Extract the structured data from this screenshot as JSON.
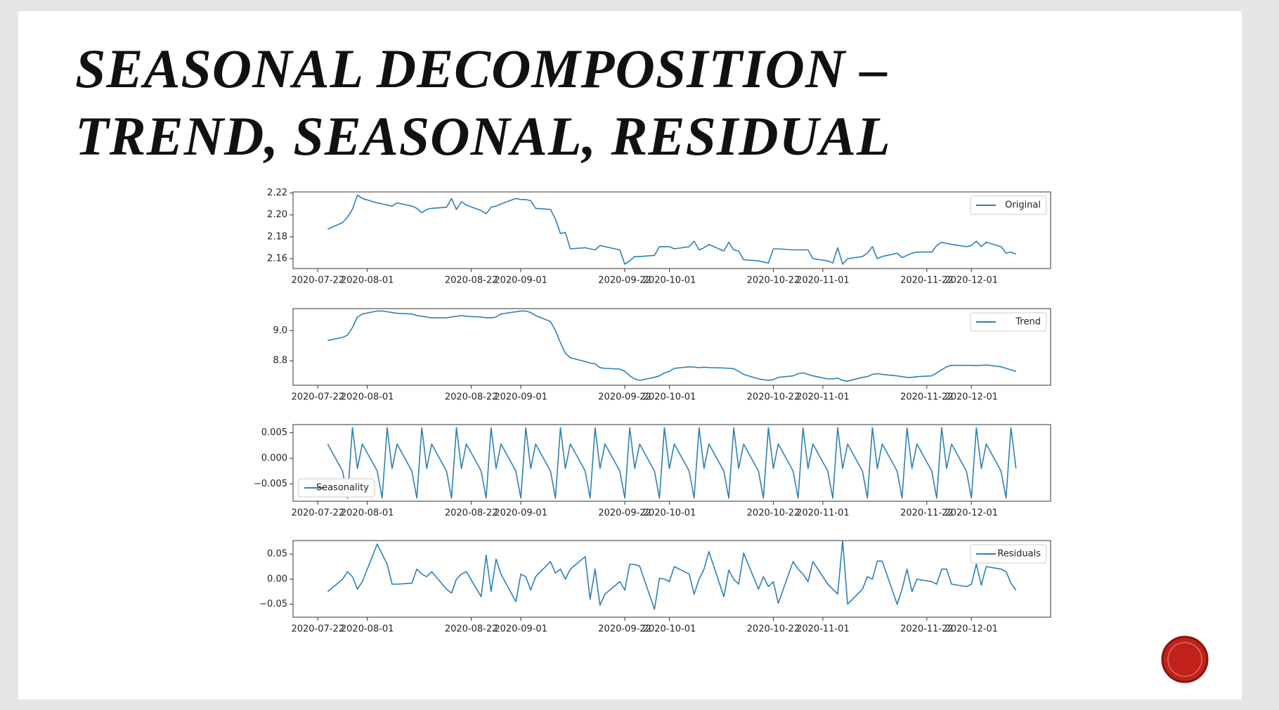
{
  "slide": {
    "title": [
      "SEASONAL DECOMPOSITION –",
      "TREND, SEASONAL, RESIDUAL"
    ]
  },
  "chart_data": {
    "type": "line",
    "x": [
      "2020-07-24",
      "2020-07-27",
      "2020-07-28",
      "2020-07-29",
      "2020-07-30",
      "2020-07-31",
      "2020-08-03",
      "2020-08-04",
      "2020-08-05",
      "2020-08-06",
      "2020-08-07",
      "2020-08-10",
      "2020-08-11",
      "2020-08-12",
      "2020-08-13",
      "2020-08-14",
      "2020-08-17",
      "2020-08-18",
      "2020-08-19",
      "2020-08-20",
      "2020-08-21",
      "2020-08-24",
      "2020-08-25",
      "2020-08-26",
      "2020-08-27",
      "2020-08-28",
      "2020-08-31",
      "2020-09-01",
      "2020-09-02",
      "2020-09-03",
      "2020-09-04",
      "2020-09-07",
      "2020-09-08",
      "2020-09-09",
      "2020-09-10",
      "2020-09-11",
      "2020-09-14",
      "2020-09-15",
      "2020-09-16",
      "2020-09-17",
      "2020-09-18",
      "2020-09-21",
      "2020-09-22",
      "2020-09-23",
      "2020-09-24",
      "2020-09-25",
      "2020-09-28",
      "2020-09-29",
      "2020-09-30",
      "2020-10-01",
      "2020-10-02",
      "2020-10-05",
      "2020-10-06",
      "2020-10-07",
      "2020-10-08",
      "2020-10-09",
      "2020-10-12",
      "2020-10-13",
      "2020-10-14",
      "2020-10-15",
      "2020-10-16",
      "2020-10-19",
      "2020-10-20",
      "2020-10-21",
      "2020-10-22",
      "2020-10-23",
      "2020-10-26",
      "2020-10-27",
      "2020-10-28",
      "2020-10-29",
      "2020-10-30",
      "2020-11-02",
      "2020-11-03",
      "2020-11-04",
      "2020-11-05",
      "2020-11-06",
      "2020-11-09",
      "2020-11-10",
      "2020-11-11",
      "2020-11-12",
      "2020-11-13",
      "2020-11-16",
      "2020-11-17",
      "2020-11-18",
      "2020-11-19",
      "2020-11-20",
      "2020-11-23",
      "2020-11-24",
      "2020-11-25",
      "2020-11-26",
      "2020-11-27",
      "2020-11-30",
      "2020-12-01",
      "2020-12-02",
      "2020-12-03",
      "2020-12-04",
      "2020-12-07",
      "2020-12-08",
      "2020-12-09",
      "2020-12-10"
    ],
    "xlim": [
      "2020-07-17",
      "2020-12-17"
    ],
    "xticks": [
      "2020-07-22",
      "2020-08-01",
      "2020-08-22",
      "2020-09-01",
      "2020-09-22",
      "2020-10-01",
      "2020-10-22",
      "2020-11-01",
      "2020-11-22",
      "2020-12-01"
    ],
    "series": [
      {
        "name": "Original",
        "color": "#2f7fb5",
        "legend": "upper right",
        "ylim": [
          2.151,
          2.221
        ],
        "yticks": [
          2.16,
          2.18,
          {
            "value": 2.2,
            "label": "2.20"
          },
          2.22
        ],
        "values": [
          2.187,
          2.193,
          2.198,
          2.205,
          2.218,
          2.215,
          2.211,
          2.21,
          2.209,
          2.208,
          2.211,
          2.208,
          2.206,
          2.202,
          2.205,
          2.206,
          2.207,
          2.215,
          2.205,
          2.212,
          2.209,
          2.204,
          2.201,
          2.207,
          2.208,
          2.21,
          2.215,
          2.214,
          2.214,
          2.213,
          2.206,
          2.205,
          2.196,
          2.183,
          2.184,
          2.169,
          2.17,
          2.169,
          2.168,
          2.172,
          2.171,
          2.168,
          2.155,
          2.158,
          2.162,
          2.162,
          2.163,
          2.171,
          2.171,
          2.171,
          2.169,
          2.171,
          2.176,
          2.168,
          2.17,
          2.173,
          2.167,
          2.175,
          2.168,
          2.167,
          2.159,
          2.158,
          2.157,
          2.156,
          2.169,
          2.169,
          2.168,
          2.168,
          2.168,
          2.168,
          2.16,
          2.158,
          2.156,
          2.17,
          2.155,
          2.16,
          2.162,
          2.165,
          2.171,
          2.16,
          2.162,
          2.165,
          2.161,
          2.163,
          2.165,
          2.166,
          2.166,
          2.172,
          2.175,
          2.174,
          2.173,
          2.171,
          2.172,
          2.176,
          2.171,
          2.175,
          2.171,
          2.165,
          2.166,
          2.164
        ]
      },
      {
        "name": "Trend",
        "color": "#2f7fb5",
        "legend": "upper right",
        "ylim": [
          8.638,
          9.146
        ],
        "yticks": [
          8.8,
          {
            "value": 9,
            "label": "9.0"
          }
        ],
        "values": [
          8.935,
          8.955,
          8.97,
          9.02,
          9.09,
          9.11,
          9.13,
          9.13,
          9.125,
          9.12,
          9.115,
          9.11,
          9.1,
          9.095,
          9.09,
          9.085,
          9.085,
          9.09,
          9.095,
          9.1,
          9.095,
          9.09,
          9.085,
          9.085,
          9.09,
          9.11,
          9.125,
          9.13,
          9.13,
          9.12,
          9.1,
          9.06,
          9.0,
          8.92,
          8.85,
          8.82,
          8.795,
          8.785,
          8.78,
          8.755,
          8.75,
          8.745,
          8.73,
          8.7,
          8.68,
          8.67,
          8.69,
          8.7,
          8.72,
          8.73,
          8.75,
          8.76,
          8.758,
          8.755,
          8.758,
          8.755,
          8.752,
          8.75,
          8.748,
          8.73,
          8.71,
          8.68,
          8.675,
          8.67,
          8.675,
          8.69,
          8.7,
          8.715,
          8.72,
          8.71,
          8.7,
          8.68,
          8.68,
          8.685,
          8.67,
          8.665,
          8.69,
          8.695,
          8.71,
          8.715,
          8.71,
          8.7,
          8.695,
          8.69,
          8.69,
          8.695,
          8.7,
          8.72,
          8.74,
          8.76,
          8.77,
          8.77,
          8.77,
          8.768,
          8.77,
          8.772,
          8.76,
          8.75,
          8.74,
          8.73
        ]
      },
      {
        "name": "Seasonality",
        "color": "#2f7fb5",
        "legend": "lower left",
        "ylim": [
          -0.0084,
          0.0066
        ],
        "yticks": [
          {
            "value": -0.005,
            "label": "−0.005"
          },
          {
            "value": 0,
            "label": "0.000"
          },
          0.005
        ],
        "values": [
          0.0028,
          -0.0025,
          -0.0078,
          0.006,
          -0.002,
          0.0028,
          -0.0025,
          -0.0078,
          0.006,
          -0.002,
          0.0028,
          -0.0025,
          -0.0078,
          0.006,
          -0.002,
          0.0028,
          -0.0025,
          -0.0078,
          0.006,
          -0.002,
          0.0028,
          -0.0025,
          -0.0078,
          0.006,
          -0.002,
          0.0028,
          -0.0025,
          -0.0078,
          0.006,
          -0.002,
          0.0028,
          -0.0025,
          -0.0078,
          0.006,
          -0.002,
          0.0028,
          -0.0025,
          -0.0078,
          0.006,
          -0.002,
          0.0028,
          -0.0025,
          -0.0078,
          0.006,
          -0.002,
          0.0028,
          -0.0025,
          -0.0078,
          0.006,
          -0.002,
          0.0028,
          -0.0025,
          -0.0078,
          0.006,
          -0.002,
          0.0028,
          -0.0025,
          -0.0078,
          0.006,
          -0.002,
          0.0028,
          -0.0025,
          -0.0078,
          0.006,
          -0.002,
          0.0028,
          -0.0025,
          -0.0078,
          0.006,
          -0.002,
          0.0028,
          -0.0025,
          -0.0078,
          0.006,
          -0.002,
          0.0028,
          -0.0025,
          -0.0078,
          0.006,
          -0.002,
          0.0028,
          -0.0025,
          -0.0078,
          0.006,
          -0.002,
          0.0028,
          -0.0025,
          -0.0078,
          0.006,
          -0.002,
          0.0028,
          -0.0025,
          -0.0078,
          0.006,
          -0.002,
          0.0028,
          -0.0025,
          -0.0078,
          0.006,
          -0.002
        ]
      },
      {
        "name": "Residuals",
        "color": "#2f7fb5",
        "legend": "upper right",
        "ylim": [
          -0.076,
          0.077
        ],
        "yticks": [
          {
            "value": -0.05,
            "label": "−0.05"
          },
          {
            "value": 0,
            "label": "0.00"
          },
          0.05
        ],
        "values": [
          -0.025,
          0.0,
          0.015,
          0.005,
          -0.02,
          -0.005,
          0.07,
          0.05,
          0.03,
          -0.01,
          -0.01,
          -0.008,
          0.02,
          0.01,
          0.005,
          0.015,
          -0.02,
          -0.028,
          0.0,
          0.01,
          0.015,
          -0.035,
          0.048,
          -0.025,
          0.04,
          0.01,
          -0.045,
          0.01,
          0.005,
          -0.022,
          0.005,
          0.035,
          0.012,
          0.02,
          0.0,
          0.02,
          0.045,
          -0.04,
          0.02,
          -0.052,
          -0.03,
          -0.005,
          -0.022,
          0.03,
          0.029,
          0.026,
          -0.06,
          0.002,
          0.0,
          -0.005,
          0.025,
          0.01,
          -0.03,
          0.0,
          0.02,
          0.055,
          -0.035,
          0.018,
          0.0,
          -0.01,
          0.052,
          -0.02,
          0.005,
          -0.015,
          -0.005,
          -0.048,
          0.035,
          0.02,
          0.01,
          -0.005,
          0.035,
          -0.01,
          -0.02,
          -0.03,
          0.077,
          -0.05,
          -0.02,
          0.005,
          0.0,
          0.036,
          0.036,
          -0.05,
          -0.02,
          0.02,
          -0.025,
          0.0,
          -0.005,
          -0.01,
          0.02,
          0.02,
          -0.01,
          -0.015,
          -0.01,
          0.03,
          -0.012,
          0.025,
          0.02,
          0.015,
          -0.008,
          -0.022
        ]
      }
    ]
  }
}
